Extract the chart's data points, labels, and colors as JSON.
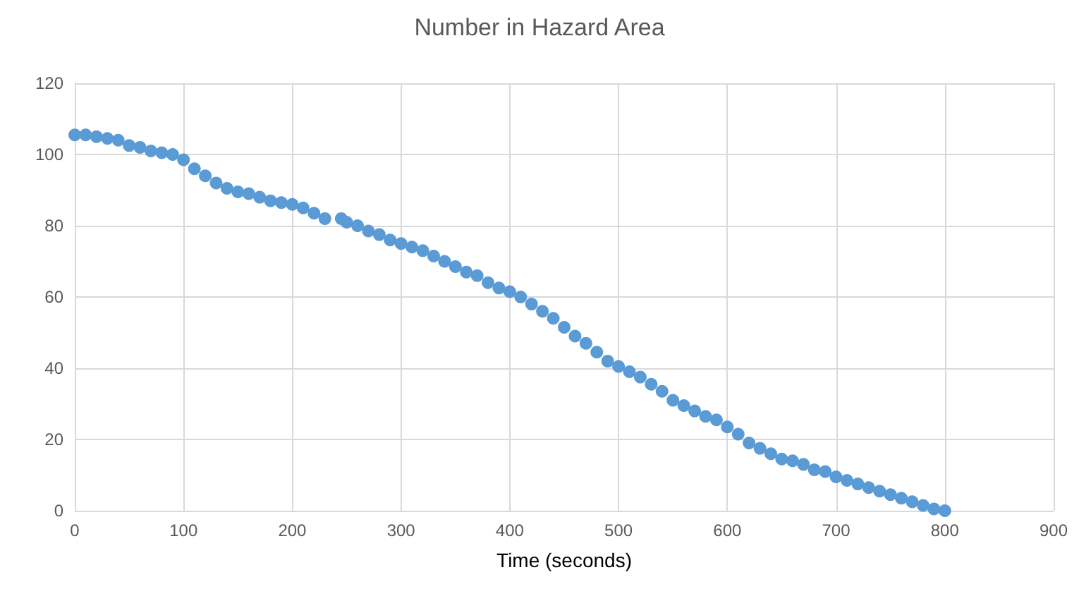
{
  "chart_data": {
    "type": "scatter",
    "title": "Number in Hazard Area",
    "xlabel": "Time (seconds)",
    "x": [
      0,
      10,
      20,
      30,
      40,
      50,
      60,
      70,
      80,
      90,
      100,
      110,
      120,
      130,
      140,
      150,
      160,
      170,
      180,
      190,
      200,
      210,
      220,
      230,
      245,
      250,
      260,
      270,
      280,
      290,
      300,
      310,
      320,
      330,
      340,
      350,
      360,
      370,
      380,
      390,
      400,
      410,
      420,
      430,
      440,
      450,
      460,
      470,
      480,
      490,
      500,
      510,
      520,
      530,
      540,
      550,
      560,
      570,
      580,
      590,
      600,
      610,
      620,
      630,
      640,
      650,
      660,
      670,
      680,
      690,
      700,
      710,
      720,
      730,
      740,
      750,
      760,
      770,
      780,
      790,
      800
    ],
    "series": [
      {
        "color": "#5b9bd5",
        "values": [
          105.5,
          105.5,
          105,
          104.5,
          104,
          102.5,
          102,
          101,
          100.5,
          100,
          98.5,
          96,
          94,
          92,
          90.5,
          89.5,
          89,
          88,
          87,
          86.5,
          86,
          85,
          83.5,
          82,
          82,
          81,
          80,
          78.5,
          77.5,
          76,
          75,
          74,
          73,
          71.5,
          70,
          68.5,
          67,
          66,
          64,
          62.5,
          61.5,
          60,
          58,
          56,
          54,
          51.5,
          49,
          47,
          44.5,
          42,
          40.5,
          39,
          37.5,
          35.5,
          33.5,
          31,
          29.5,
          28,
          26.5,
          25.5,
          23.5,
          21.5,
          19,
          17.5,
          16,
          14.5,
          14,
          13,
          11.5,
          11,
          9.5,
          8.5,
          7.5,
          6.5,
          5.5,
          4.5,
          3.5,
          2.5,
          1.5,
          0.5,
          0
        ]
      }
    ],
    "xlim": [
      0,
      900
    ],
    "xticks": [
      0,
      100,
      200,
      300,
      400,
      500,
      600,
      700,
      800,
      900
    ],
    "ylim": [
      0,
      120
    ],
    "yticks": [
      0,
      20,
      40,
      60,
      80,
      100,
      120
    ],
    "grid": true,
    "marker": "circle"
  }
}
